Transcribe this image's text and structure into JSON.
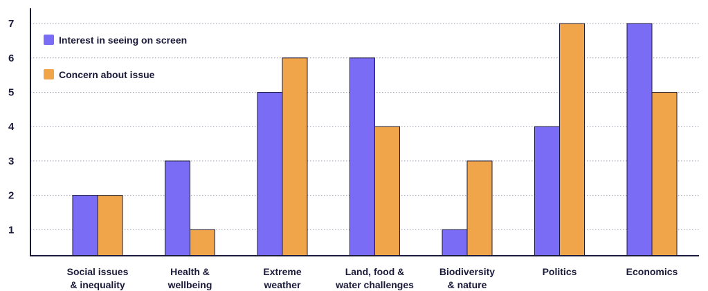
{
  "chart_data": {
    "type": "bar",
    "categories": [
      [
        "Social issues",
        "& inequality"
      ],
      [
        "Health &",
        "wellbeing"
      ],
      [
        "Extreme",
        "weather"
      ],
      [
        "Land, food &",
        "water challenges"
      ],
      [
        "Biodiversity",
        "& nature"
      ],
      [
        "Politics"
      ],
      [
        "Economics"
      ]
    ],
    "series": [
      {
        "name": "Interest in seeing on screen",
        "color": "#7B6CF6",
        "values": [
          2,
          3,
          5,
          6,
          1,
          4,
          7
        ]
      },
      {
        "name": "Concern about issue",
        "color": "#F0A54A",
        "values": [
          2,
          1,
          6,
          4,
          3,
          7,
          5
        ]
      }
    ],
    "yticks": [
      1,
      2,
      3,
      4,
      5,
      6,
      7
    ],
    "ylim": [
      0,
      7
    ],
    "grid": true,
    "legend_position": "top-left"
  }
}
